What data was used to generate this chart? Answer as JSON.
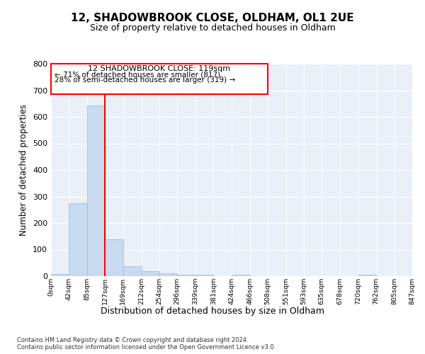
{
  "title": "12, SHADOWBROOK CLOSE, OLDHAM, OL1 2UE",
  "subtitle": "Size of property relative to detached houses in Oldham",
  "xlabel": "Distribution of detached houses by size in Oldham",
  "ylabel": "Number of detached properties",
  "bar_color": "#c8daf0",
  "bar_edge_color": "#9ab8dc",
  "background_color": "#eaf0f8",
  "bin_edges": [
    0,
    42,
    85,
    127,
    169,
    212,
    254,
    296,
    339,
    381,
    424,
    466,
    508,
    551,
    593,
    635,
    678,
    720,
    762,
    805,
    847
  ],
  "bin_labels": [
    "0sqm",
    "42sqm",
    "85sqm",
    "127sqm",
    "169sqm",
    "212sqm",
    "254sqm",
    "296sqm",
    "339sqm",
    "381sqm",
    "424sqm",
    "466sqm",
    "508sqm",
    "551sqm",
    "593sqm",
    "635sqm",
    "678sqm",
    "720sqm",
    "762sqm",
    "805sqm",
    "847sqm"
  ],
  "bar_heights": [
    8,
    275,
    643,
    140,
    38,
    20,
    12,
    5,
    5,
    0,
    5,
    0,
    0,
    0,
    0,
    0,
    0,
    5,
    0,
    0
  ],
  "ylim": [
    0,
    800
  ],
  "yticks": [
    0,
    100,
    200,
    300,
    400,
    500,
    600,
    700,
    800
  ],
  "red_line_x": 127,
  "annotation_title": "12 SHADOWBROOK CLOSE: 119sqm",
  "annotation_line1": "← 71% of detached houses are smaller (817)",
  "annotation_line2": "28% of semi-detached houses are larger (319) →",
  "footer_line1": "Contains HM Land Registry data © Crown copyright and database right 2024.",
  "footer_line2": "Contains public sector information licensed under the Open Government Licence v3.0."
}
